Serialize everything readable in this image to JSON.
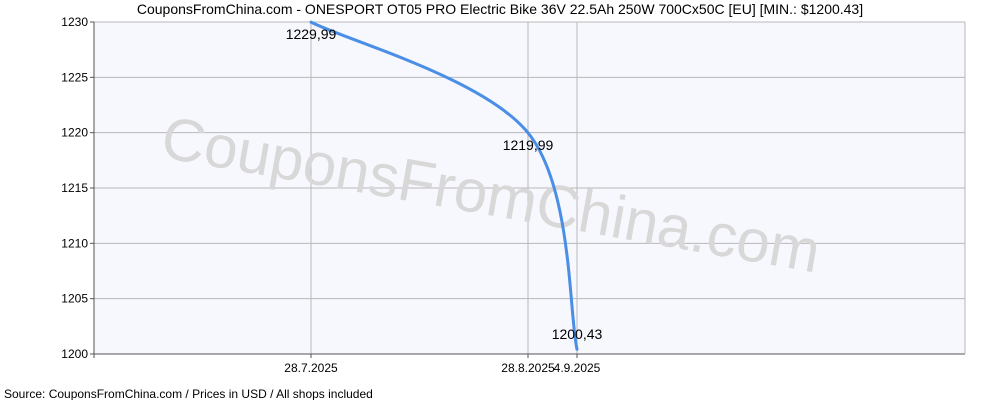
{
  "title": "CouponsFromChina.com - ONESPORT OT05 PRO Electric Bike 36V 22.5Ah 250W 700Cx50C [EU] [MIN.: $1200.43]",
  "watermark": "CouponsFromChina.com",
  "footer": "Source:  CouponsFromChina.com / Prices in USD / All shops included",
  "colors": {
    "line": "#4a8ee6",
    "plot_bg": "#f7f7fe",
    "grid": "#b8b8b8"
  },
  "chart_data": {
    "type": "line",
    "title": "CouponsFromChina.com - ONESPORT OT05 PRO Electric Bike 36V 22.5Ah 250W 700Cx50C [EU] [MIN.: $1200.43]",
    "xlabel": "",
    "ylabel": "",
    "ylim": [
      1200,
      1230
    ],
    "y_ticks": [
      "1230",
      "1225",
      "1220",
      "1215",
      "1210",
      "1205",
      "1200"
    ],
    "x_ticks": [
      "28.7.2025",
      "28.8.2025",
      "4.9.2025"
    ],
    "grid": true,
    "series": [
      {
        "x": [
          "28.7.2025",
          "28.8.2025",
          "4.9.2025"
        ],
        "values": [
          1229.99,
          1219.99,
          1200.43
        ],
        "labels": [
          "1229,99",
          "1219,99",
          "1200,43"
        ]
      }
    ]
  }
}
